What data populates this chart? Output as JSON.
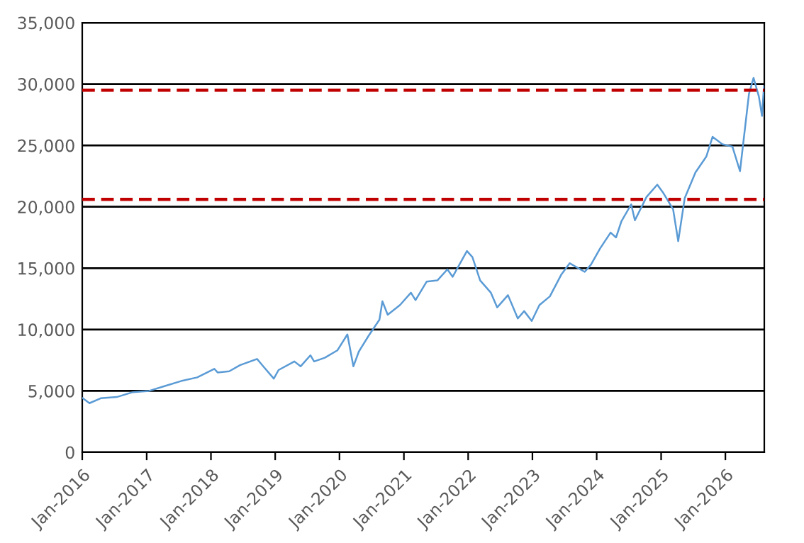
{
  "chart_data": {
    "type": "line",
    "x": [
      "2016-01-04",
      "2016-02-11",
      "2016-04-15",
      "2016-07-15",
      "2016-10-15",
      "2017-01-15",
      "2017-04-15",
      "2017-07-15",
      "2017-10-15",
      "2018-01-20",
      "2018-02-08",
      "2018-04-15",
      "2018-06-15",
      "2018-09-20",
      "2018-10-25",
      "2018-12-24",
      "2019-01-20",
      "2019-04-20",
      "2019-05-25",
      "2019-07-20",
      "2019-08-10",
      "2019-10-10",
      "2019-12-20",
      "2020-02-15",
      "2020-03-20",
      "2020-04-20",
      "2020-06-15",
      "2020-08-15",
      "2020-09-01",
      "2020-10-01",
      "2020-12-10",
      "2021-02-10",
      "2021-03-08",
      "2021-05-10",
      "2021-07-10",
      "2021-09-05",
      "2021-10-05",
      "2021-12-25",
      "2022-01-25",
      "2022-03-10",
      "2022-05-10",
      "2022-06-15",
      "2022-08-15",
      "2022-10-10",
      "2022-11-15",
      "2022-12-28",
      "2023-02-10",
      "2023-04-10",
      "2023-06-15",
      "2023-08-01",
      "2023-10-25",
      "2023-11-30",
      "2024-01-20",
      "2024-03-20",
      "2024-04-20",
      "2024-05-20",
      "2024-07-15",
      "2024-08-05",
      "2024-10-10",
      "2024-12-10",
      "2025-01-10",
      "2025-03-10",
      "2025-04-08",
      "2025-05-15",
      "2025-07-15",
      "2025-09-15",
      "2025-10-20",
      "2025-12-15",
      "2026-02-10",
      "2026-03-25",
      "2026-04-15",
      "2026-05-15",
      "2026-06-10",
      "2026-07-10",
      "2026-07-28",
      "2026-08-08"
    ],
    "series": [
      {
        "color": "#5b9bd5",
        "values": [
          4400,
          4000,
          4400,
          4500,
          4900,
          5000,
          5400,
          5800,
          6100,
          6800,
          6500,
          6600,
          7100,
          7600,
          7000,
          6000,
          6700,
          7400,
          7000,
          7900,
          7400,
          7700,
          8300,
          9600,
          7000,
          8200,
          9500,
          10800,
          12300,
          11200,
          12000,
          13000,
          12400,
          13900,
          14000,
          14900,
          14300,
          16400,
          15900,
          14000,
          13000,
          11800,
          12800,
          10900,
          11500,
          10700,
          12000,
          12700,
          14500,
          15400,
          14700,
          15300,
          16600,
          17900,
          17500,
          18800,
          20200,
          18900,
          20800,
          21800,
          21200,
          19800,
          17200,
          20700,
          22800,
          24100,
          25700,
          25100,
          24900,
          22900,
          25500,
          29200,
          30500,
          29000,
          27400,
          29800
        ]
      }
    ],
    "xlim": [
      "2016-01-01",
      "2026-08-10"
    ],
    "xticks": [
      {
        "value": "2016-01-01",
        "label": "Jan-2016"
      },
      {
        "value": "2017-01-01",
        "label": "Jan-2017"
      },
      {
        "value": "2018-01-01",
        "label": "Jan-2018"
      },
      {
        "value": "2019-01-01",
        "label": "Jan-2019"
      },
      {
        "value": "2020-01-01",
        "label": "Jan-2020"
      },
      {
        "value": "2021-01-01",
        "label": "Jan-2021"
      },
      {
        "value": "2022-01-01",
        "label": "Jan-2022"
      },
      {
        "value": "2023-01-01",
        "label": "Jan-2023"
      },
      {
        "value": "2024-01-01",
        "label": "Jan-2024"
      },
      {
        "value": "2025-01-01",
        "label": "Jan-2025"
      },
      {
        "value": "2026-01-01",
        "label": "Jan-2026"
      }
    ],
    "ylim": [
      0,
      35000
    ],
    "yticks": [
      {
        "value": 0,
        "label": "0"
      },
      {
        "value": 5000,
        "label": "5,000"
      },
      {
        "value": 10000,
        "label": "10,000"
      },
      {
        "value": 15000,
        "label": "15,000"
      },
      {
        "value": 20000,
        "label": "20,000"
      },
      {
        "value": 25000,
        "label": "25,000"
      },
      {
        "value": 30000,
        "label": "30,000"
      },
      {
        "value": 35000,
        "label": "35,000"
      }
    ],
    "grid": "y",
    "legend": false,
    "marker": "none",
    "line_style": "solid",
    "ref_lines": [
      {
        "axis": "y",
        "value": 29500,
        "label": null,
        "color": "#c00000",
        "line_style": "dashed"
      },
      {
        "axis": "y",
        "value": 20600,
        "label": null,
        "color": "#c00000",
        "line_style": "dashed"
      }
    ]
  }
}
